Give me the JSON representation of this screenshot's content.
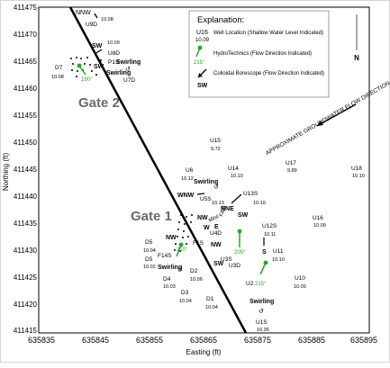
{
  "map": {
    "x_axis": {
      "label": "Easting (ft)",
      "ticks": [
        "635835",
        "635845",
        "635855",
        "635865",
        "635875",
        "635885",
        "635895"
      ]
    },
    "y_axis": {
      "label": "Northing (ft)",
      "ticks": [
        "411475",
        "411470",
        "411465",
        "411460",
        "411455",
        "411450",
        "411445",
        "411440",
        "411435",
        "411430",
        "411425",
        "411420",
        "411415"
      ]
    },
    "legend": {
      "title": "Explanation:",
      "well_id": "U16",
      "well_value": "10.09",
      "well_desc": "Well Location (Shallow Water Level Indicated)",
      "hydro_desc": "HydroTechnics (Flow Direction Indicated)",
      "hydro_angle": "215°",
      "colloidal_desc": "Colloidal Borescope (Flow Direction Indicated)",
      "colloidal_dir": "SW"
    },
    "gates": [
      "Gate 2",
      "Gate 1"
    ],
    "trend_note": "APPROXIMATE GROUNDWATER FLOW DIRECTION",
    "north": "N",
    "wells": [
      {
        "id": "U9D",
        "value": "10.08"
      },
      {
        "id": "U8D",
        "value": "10.09"
      },
      {
        "id": "P1S",
        "value": "10.08"
      },
      {
        "id": "U7D",
        "value": ""
      },
      {
        "id": "D7",
        "value": "10.08"
      },
      {
        "id": "U15",
        "value": "9.72"
      },
      {
        "id": "U17",
        "value": "9.89"
      },
      {
        "id": "U18",
        "value": "10.10"
      },
      {
        "id": "U14",
        "value": "10.10"
      },
      {
        "id": "U6",
        "value": "10.12"
      },
      {
        "id": "U5S",
        "value": "10.13"
      },
      {
        "id": "U13S",
        "value": "10.10"
      },
      {
        "id": "U12S",
        "value": "10.11"
      },
      {
        "id": "U16",
        "value": "10.09"
      },
      {
        "id": "U4D",
        "value": ""
      },
      {
        "id": "U3S",
        "value": ""
      },
      {
        "id": "U3D",
        "value": ""
      },
      {
        "id": "U11",
        "value": "10.10"
      },
      {
        "id": "F1S",
        "value": ""
      },
      {
        "id": "D5",
        "value": "10.04"
      },
      {
        "id": "F14S",
        "value": ""
      },
      {
        "id": "D5",
        "value": "10.02"
      },
      {
        "id": "D4",
        "value": "10.03"
      },
      {
        "id": "D2",
        "value": "10.06"
      },
      {
        "id": "D3",
        "value": "10.04"
      },
      {
        "id": "D1",
        "value": "10.04"
      },
      {
        "id": "U2",
        "value": ""
      },
      {
        "id": "U10",
        "value": "10.09"
      },
      {
        "id": "U1S",
        "value": "10.36"
      }
    ],
    "flow_labels": [
      "NNW",
      "SW",
      "SW",
      "Swirling",
      "Swirling",
      "Swirling",
      "Swirling",
      "WNW",
      "NNE",
      "SW",
      "NW",
      "W",
      "NW",
      "E",
      "NW",
      "NW",
      "S",
      "SW",
      "Swirling",
      "Swirling",
      "NW",
      "Swirling"
    ],
    "angles": [
      "190°",
      "205°",
      "210°",
      "215°"
    ],
    "misc_labels": [
      "Misc",
      "FAM"
    ],
    "colors": {
      "line": "#000000",
      "hydro": "#2aa52a",
      "text": "#000000",
      "gate_text": "#6b6b6b"
    }
  }
}
